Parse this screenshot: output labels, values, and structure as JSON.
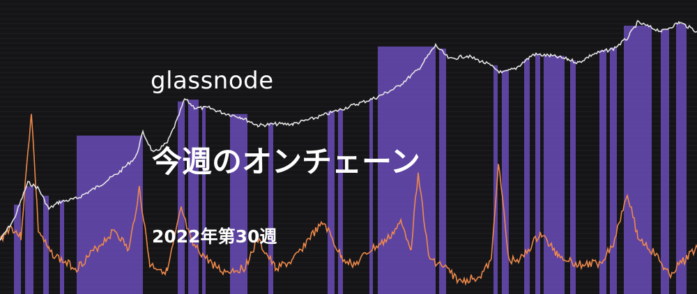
{
  "banner": {
    "brand": "glassnode",
    "title": "今週のオンチェーン",
    "subtitle": "2022年第30週"
  },
  "colors": {
    "background": "#151517",
    "grid": "#3a3a3e",
    "band": "#6a4bb8",
    "price_line": "#e6e6e6",
    "metric_line": "#f08a4b"
  }
}
